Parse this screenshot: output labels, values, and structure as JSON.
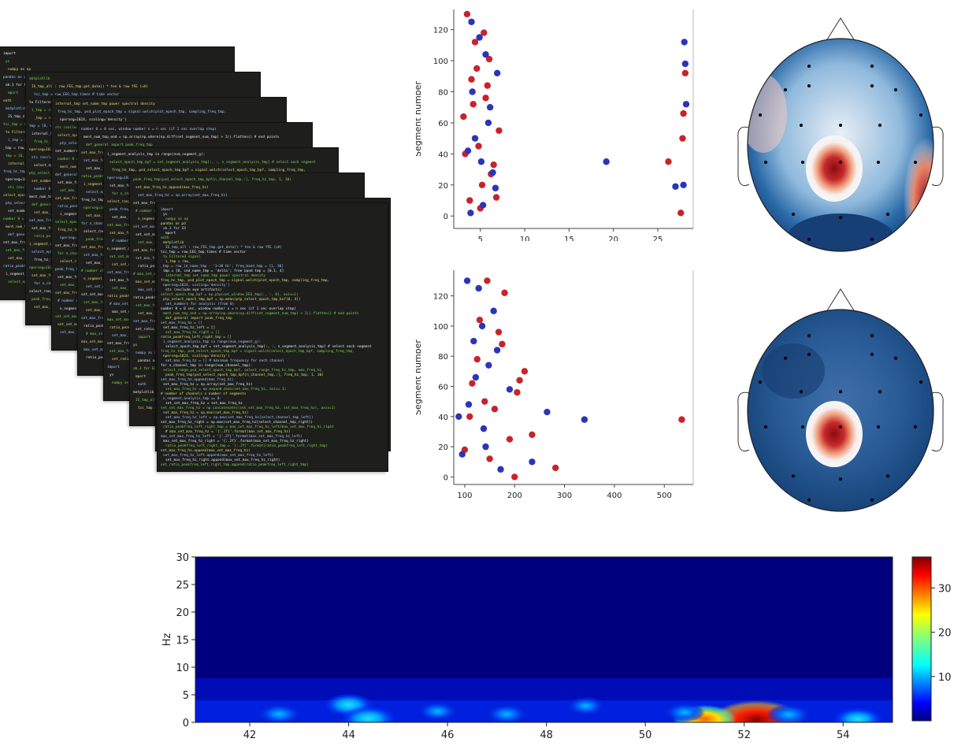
{
  "code_collage": {
    "windows": 8,
    "lines": [
      "import",
      "ys",
      "numpy as np",
      "pandas as pd",
      "ab.3 for ED",
      "mport",
      "eath",
      "matplotlib",
      "IS_tmp_all : raw_FEG_tmp.get_data() * ten & raw fFE (uV)",
      "tcc_tmp = raw_EEG_tmp.times # time vector",
      "tu Filtered signal",
      "i_tmp = raw_",
      "_tmp = raw_id_name_tmp - '1~30 Hz'; freq_band_tmp = [1, 30]",
      "tmp = [0, ced_name_tmp = 'delta'; free band tmp = [0.1, 4]",
      "internal_tmp  set_name_tmp power spectral density",
      "freq_hc_tmp, psd_plot_epoch_tmp = signal.welch(plot_epoch_tmp, sampling_freq_tmp,",
      "nperseg=1024, scaling='density')",
      "sts (exclude eye artifacts)",
      "select_epoch_tmp_bpf = np.ptp(set_window_EEG_tmp[:, :, 0], axis=1)",
      "ptp_select_epoch_tmp_bpf = np.mean(ptp_select_epoch_tmp_buf[0, 4])",
      "set_numbers for analysis (from 0)",
      "number 0 = 0 sec, window number n = n sec (if 1 sec overlap step)",
      "ment_num_tmp_end = np.array(np.where(np.diff(set_segment_num_tmp) > 1)).flatten() # end points",
      "def_general import peak_freq_tmp",
      "set_max_freq_hz = []",
      "set_max_freq_hz_left = []",
      "set_max_freq_hz_right = []",
      "ratio_peakfreq_left_right_tmp = []",
      "i_segment_analysis_tmp in range(num_segment_g):",
      "select_epoch_tmp_bpf = set_segment_analysis_tmp[:, :, n_segment_analysis_tmp] # select each segment",
      "freq_hz_tmp, psd_select_epoch_tmp_bpf = signal.welch(select_epoch_tmp_bpf, sampling_freq_tmp,",
      "nperseg=1024, scaling='density')",
      "set_max_freq_hz = [] # maximum frequency for each channel",
      "for n_channel_tmp in range(num_channel_tmp):",
      "select_range_psd_select_epoch_tmp_bpf, select_range_freq_hz_tmp, max_freq_hz_",
      "peak_freq_tmp(psd_select_epoch_tmp_bpf[n_channel_tmp,:], freq_hz_tmp, 1, 30)",
      "set_max_freq_hz.append(max_freq_hz)",
      "set_max_freq_hz = np.array(set_max_freq_hz)",
      "set_max_freq_hz = np.expand_dims(set_max_freq_hz, axis= 1)",
      "# number of channels x number of segments",
      "n_segment_analysis_tmp == 0:",
      "set_set_max_freq_hz = set_max_freq_hz",
      "set_set_max_freq_hz = np.concatenate((set_set_max_freq_hz, set_max_freq_hz), axis=1)",
      "set_max_freq_hz = np.max(set_max_freq_hz)",
      "set_max_freq_hz_left = np.max(set_max_freq_hz[select_channel_tmp_left])",
      "set_max_freq_hz_right = np.max(set_max_freq_hz[select_channel_tmp_right])",
      "ratio_peakfreq_left_right_tmp = max_set_max_freq_hz_left/max_set_max_freq_hz_right",
      "# max_set_max_freq_hz = '{:.2f}'.format(max_set_max_freq_hz)",
      "max_set_max_freq_hz_left = '{:.2f}'.format(max_set_max_freq_hz_left)",
      "max_set_max_freq_hz_right = '{:.2f}'.format(max_set_max_freq_hz_right)",
      "ratio_peakfreq_left_right_tmp = '{:.2f}'.format(ratio_peakfreq_left_right_tmp)",
      "set_max_freq_hz.append(max_set_max_freq_hz)",
      "set_max_freq_hz_left.append(max_set_max_freq_hz_left)",
      "set_max_freq_hz_right.append(max_set_max_freq_hz_right)",
      "set_ratio_peakfreq_left_right_tmp.append(ratio_peakfreq_left_right_tmp)"
    ]
  },
  "colors": {
    "red_points": "#c8232c",
    "blue_points": "#2b35b8",
    "code_bg": "#1e1f1c",
    "code_green": "#7fd35b",
    "code_white": "#e8e8e8",
    "code_yellow": "#e6db74"
  },
  "chart_data": [
    {
      "type": "scatter",
      "ylabel": "Segment number",
      "xlabel": "",
      "xlim": [
        2,
        29
      ],
      "ylim": [
        -8,
        133
      ],
      "xticks": [
        "5",
        "10",
        "15",
        "20",
        "25"
      ],
      "xtick_values": [
        5,
        10,
        15,
        20,
        25
      ],
      "yticks": [
        "0",
        "20",
        "40",
        "60",
        "80",
        "100",
        "120"
      ],
      "ytick_values": [
        0,
        20,
        40,
        60,
        80,
        100,
        120
      ],
      "series": [
        {
          "color": "red",
          "x": [
            3.1,
            3.5,
            4.0,
            4.4,
            4.8,
            5.2,
            5.6,
            6.0,
            6.5,
            7.1,
            3.8,
            4.6,
            5.4,
            6.2,
            3.3,
            4.2,
            5.0,
            5.8,
            6.8,
            26.2,
            27.8,
            27.9,
            28.1,
            27.6
          ],
          "y": [
            64,
            130,
            88,
            112,
            45,
            20,
            76,
            101,
            33,
            55,
            10,
            95,
            118,
            27,
            40,
            72,
            5,
            84,
            12,
            35,
            50,
            66,
            92,
            2
          ]
        },
        {
          "color": "blue",
          "x": [
            3.6,
            4.1,
            4.9,
            5.3,
            5.9,
            6.4,
            6.9,
            4.4,
            5.6,
            6.7,
            4.0,
            5.1,
            6.1,
            3.9,
            19.2,
            27.0,
            28.0,
            28.1,
            28.2,
            27.9
          ],
          "y": [
            42,
            80,
            115,
            7,
            60,
            28,
            92,
            50,
            104,
            18,
            125,
            35,
            70,
            2,
            35,
            19,
            112,
            98,
            72,
            20
          ]
        }
      ]
    },
    {
      "type": "scatter",
      "ylabel": "Segment number",
      "xlabel": "",
      "xlim": [
        78,
        558
      ],
      "ylim": [
        -5,
        137
      ],
      "xticks": [
        "100",
        "200",
        "300",
        "400",
        "500"
      ],
      "xtick_values": [
        100,
        200,
        300,
        400,
        500
      ],
      "yticks": [
        "0",
        "20",
        "40",
        "60",
        "80",
        "100",
        "120"
      ],
      "ytick_values": [
        0,
        20,
        40,
        60,
        80,
        100,
        120
      ],
      "series": [
        {
          "color": "red",
          "x": [
            100,
            115,
            130,
            145,
            160,
            175,
            190,
            205,
            220,
            200,
            235,
            282,
            535,
            180,
            125,
            150,
            168,
            110,
            140,
            210
          ],
          "y": [
            18,
            62,
            104,
            130,
            45,
            88,
            25,
            56,
            70,
            0,
            28,
            6,
            38,
            122,
            78,
            12,
            96,
            40,
            50,
            64
          ]
        },
        {
          "color": "blue",
          "x": [
            95,
            108,
            118,
            128,
            138,
            148,
            158,
            172,
            190,
            265,
            340,
            235,
            105,
            142,
            165,
            122,
            88,
            135
          ],
          "y": [
            15,
            48,
            90,
            125,
            32,
            74,
            110,
            5,
            58,
            43,
            38,
            10,
            130,
            20,
            84,
            66,
            40,
            100
          ]
        }
      ]
    },
    {
      "type": "heatmap",
      "title": "",
      "ylabel": "Hz",
      "xlabel": "",
      "xlim": [
        40.9,
        55.0
      ],
      "ylim": [
        0,
        30
      ],
      "xticks": [
        "42",
        "44",
        "46",
        "48",
        "50",
        "52",
        "54"
      ],
      "xtick_values": [
        42,
        44,
        46,
        48,
        50,
        52,
        54
      ],
      "yticks": [
        "0",
        "5",
        "10",
        "15",
        "20",
        "25",
        "30"
      ],
      "ytick_values": [
        0,
        5,
        10,
        15,
        20,
        25,
        30
      ],
      "colorbar": {
        "ticks": [
          "10",
          "20",
          "30"
        ],
        "tick_values": [
          10,
          20,
          30
        ],
        "min": 0,
        "max": 37
      },
      "hotspots": [
        {
          "t": 52.25,
          "f": 0.5,
          "value": 37
        },
        {
          "t": 51.2,
          "f": 0.6,
          "value": 22
        },
        {
          "t": 44.0,
          "f": 3.2,
          "value": 14
        },
        {
          "t": 44.4,
          "f": 0.7,
          "value": 17
        },
        {
          "t": 42.6,
          "f": 1.5,
          "value": 11
        },
        {
          "t": 47.2,
          "f": 1.5,
          "value": 10
        },
        {
          "t": 50.8,
          "f": 1.8,
          "value": 10
        },
        {
          "t": 52.9,
          "f": 1.4,
          "value": 12
        },
        {
          "t": 54.3,
          "f": 0.6,
          "value": 14
        },
        {
          "t": 45.8,
          "f": 2.0,
          "value": 9
        },
        {
          "t": 48.8,
          "f": 3.0,
          "value": 8
        }
      ]
    }
  ],
  "topomaps": [
    {
      "name": "topomap-upper",
      "hot": "center and right temporal",
      "electrodes": 19
    },
    {
      "name": "topomap-lower",
      "hot": "center",
      "electrodes": 19
    }
  ]
}
